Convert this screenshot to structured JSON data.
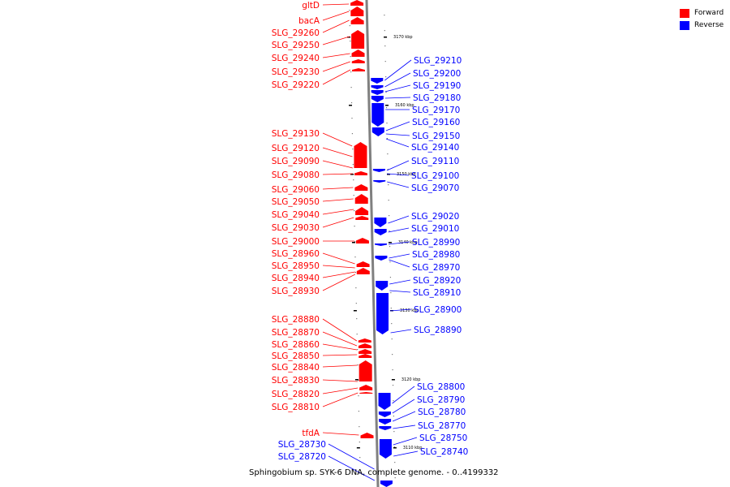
{
  "colors": {
    "forward": "#ff0000",
    "reverse": "#0000ff",
    "backbone": "#808080",
    "tick": "#000000"
  },
  "legend": [
    {
      "label": "Forward",
      "color": "#ff0000"
    },
    {
      "label": "Reverse",
      "color": "#0000ff"
    }
  ],
  "caption": "Sphingobium sp. SYK-6 DNA, complete genome. - 0..4199332",
  "scale_ticks": [
    "3170 kbp",
    "3160 kbp",
    "3150 kbp",
    "3140 kbp",
    "3130 kbp",
    "3120 kbp",
    "3110 kbp"
  ],
  "forward_genes": [
    "gltD",
    "bacA",
    "SLG_29260",
    "SLG_29250",
    "SLG_29240",
    "SLG_29230",
    "SLG_29220",
    "SLG_29130",
    "SLG_29120",
    "SLG_29090",
    "SLG_29080",
    "SLG_29060",
    "SLG_29050",
    "SLG_29040",
    "SLG_29030",
    "SLG_29000",
    "SLG_28960",
    "SLG_28950",
    "SLG_28940",
    "SLG_28930",
    "SLG_28880",
    "SLG_28870",
    "SLG_28860",
    "SLG_28850",
    "SLG_28840",
    "SLG_28830",
    "SLG_28820",
    "SLG_28810",
    "tfdA"
  ],
  "reverse_genes_left": [
    "SLG_28730",
    "SLG_28720"
  ],
  "reverse_genes": [
    "SLG_29210",
    "SLG_29200",
    "SLG_29190",
    "SLG_29180",
    "SLG_29170",
    "SLG_29160",
    "SLG_29150",
    "SLG_29140",
    "SLG_29110",
    "SLG_29100",
    "SLG_29070",
    "SLG_29020",
    "SLG_29010",
    "SLG_28990",
    "SLG_28980",
    "SLG_28970",
    "SLG_28920",
    "SLG_28910",
    "SLG_28900",
    "SLG_28890",
    "SLG_28800",
    "SLG_28790",
    "SLG_28780",
    "SLG_28770",
    "SLG_28750",
    "SLG_28740"
  ]
}
